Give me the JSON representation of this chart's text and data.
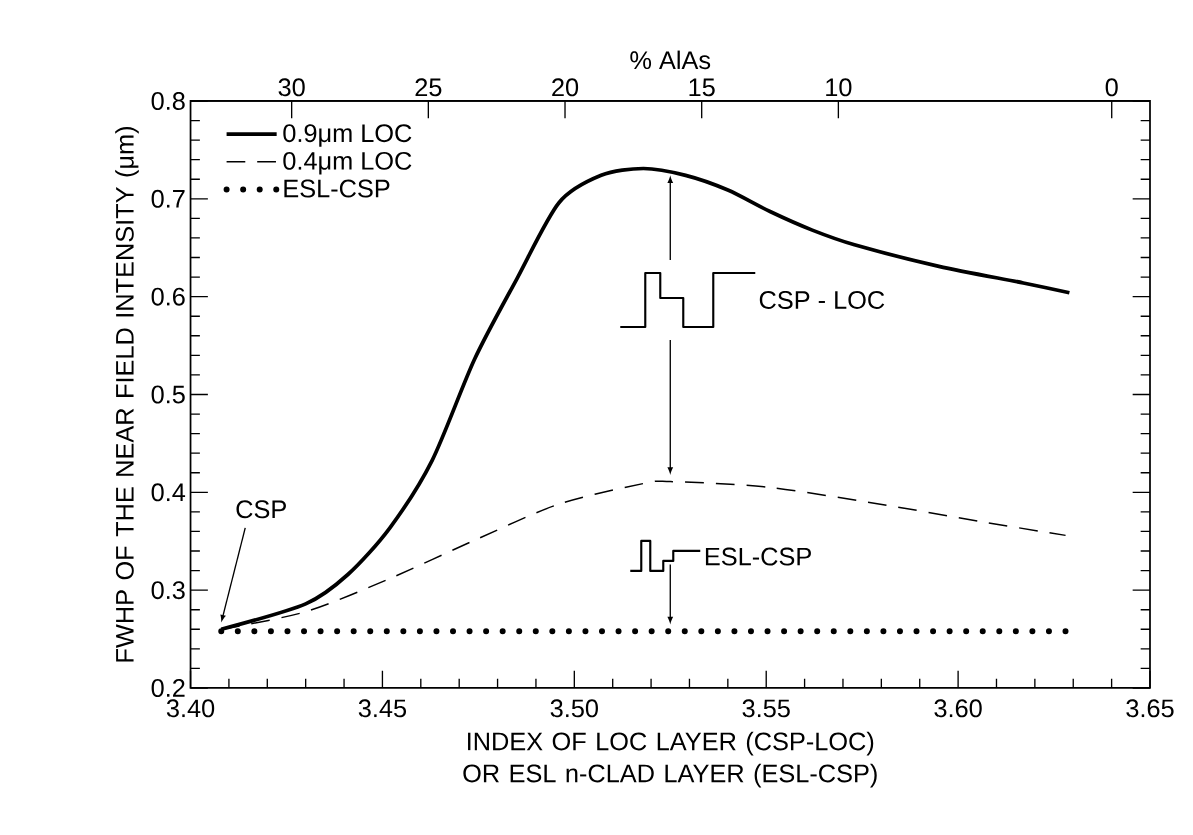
{
  "chart_data": {
    "type": "line",
    "xlabel": "INDEX OF LOC LAYER (CSP-LOC) OR ESL n-CLAD LAYER (ESL-CSP)",
    "ylabel": "FWHP OF THE NEAR FIELD INTENSITY (μm)",
    "x2label": "% AlAs",
    "xlim": [
      3.4,
      3.65
    ],
    "ylim": [
      0.2,
      0.8
    ],
    "xticks": [
      {
        "value": 3.4,
        "label": "3.40"
      },
      {
        "value": 3.45,
        "label": "3.45"
      },
      {
        "value": 3.5,
        "label": "3.50"
      },
      {
        "value": 3.55,
        "label": "3.55"
      },
      {
        "value": 3.6,
        "label": "3.60"
      },
      {
        "value": 3.65,
        "label": "3.65"
      }
    ],
    "yticks": [
      0.2,
      0.3,
      0.4,
      0.5,
      0.6,
      0.7,
      0.8
    ],
    "x2lim": [
      33.7,
      -1.4
    ],
    "x2ticks": [
      30,
      25,
      20,
      15,
      10,
      0
    ],
    "legend": "top left",
    "series": [
      {
        "name": "0.9μm LOC",
        "color": "#000000",
        "line_style": "solid",
        "x": [
          3.408,
          3.43,
          3.441,
          3.452,
          3.463,
          3.474,
          3.485,
          3.496,
          3.507,
          3.518,
          3.529,
          3.54,
          3.551,
          3.562,
          3.573,
          3.595,
          3.617,
          3.629
        ],
        "values": [
          0.26,
          0.286,
          0.316,
          0.364,
          0.433,
          0.536,
          0.618,
          0.696,
          0.724,
          0.731,
          0.724,
          0.709,
          0.687,
          0.668,
          0.653,
          0.631,
          0.614,
          0.604
        ]
      },
      {
        "name": "0.4μm LOC",
        "color": "#000000",
        "line_style": "dashed",
        "x": [
          3.408,
          3.43,
          3.452,
          3.474,
          3.496,
          3.518,
          3.525,
          3.551,
          3.584,
          3.606,
          3.628
        ],
        "values": [
          0.26,
          0.278,
          0.312,
          0.351,
          0.388,
          0.409,
          0.411,
          0.405,
          0.385,
          0.37,
          0.356
        ]
      },
      {
        "name": "ESL-CSP",
        "color": "#000000",
        "line_style": "dotted",
        "x": [
          3.408,
          3.628
        ],
        "values": [
          0.258,
          0.258
        ]
      }
    ],
    "annotations": [
      "CSP",
      "CSP - LOC",
      "ESL-CSP"
    ]
  }
}
